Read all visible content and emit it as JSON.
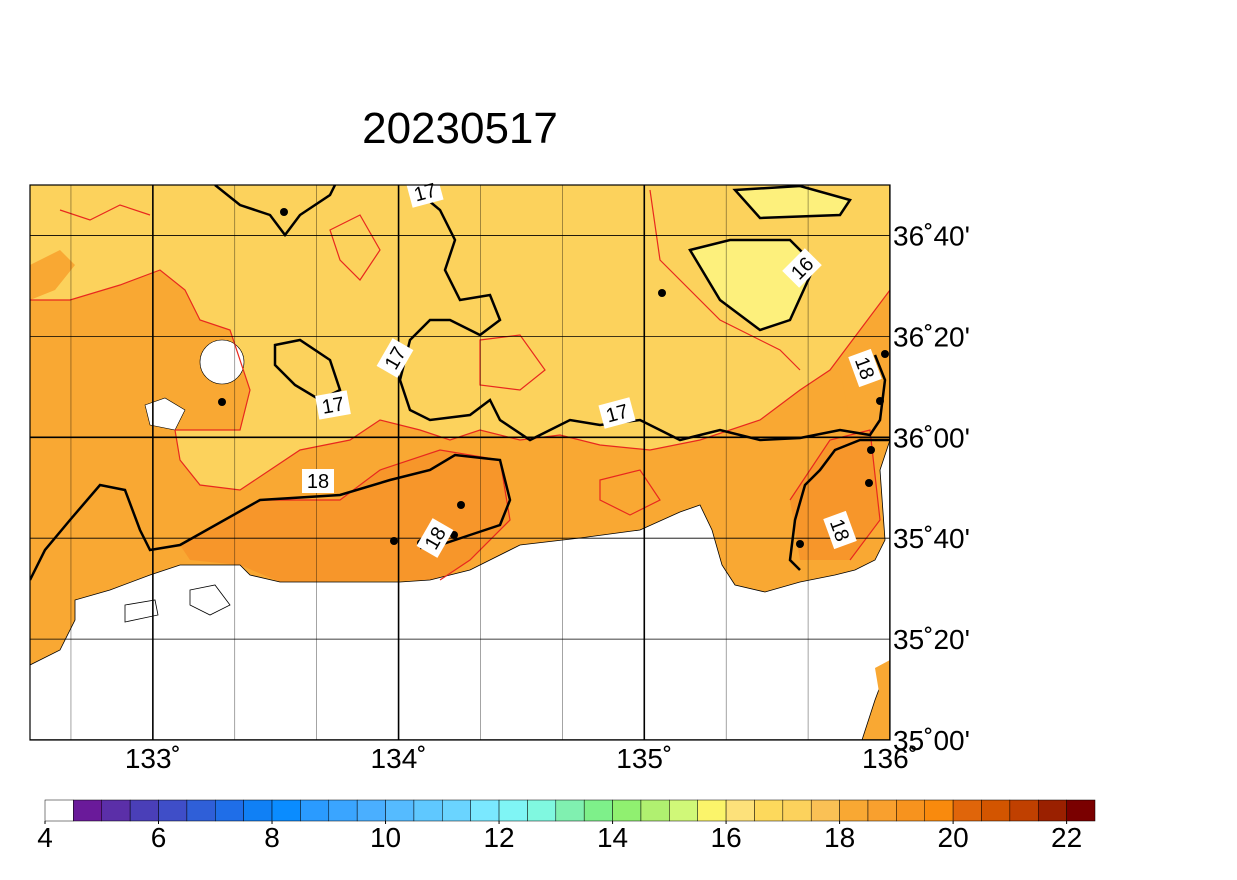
{
  "title": "20230517",
  "map": {
    "lonlim": [
      132.5,
      136
    ],
    "latlim": [
      35,
      36.8333
    ],
    "lon_ticks": [
      {
        "value": 133,
        "label": "133˚"
      },
      {
        "value": 134,
        "label": "134˚"
      },
      {
        "value": 135,
        "label": "135˚"
      },
      {
        "value": 136,
        "label": "136˚"
      }
    ],
    "lat_ticks": [
      {
        "value": 35,
        "label": "35˚00'"
      },
      {
        "value": 35.3333,
        "label": "35˚20'"
      },
      {
        "value": 35.6667,
        "label": "35˚40'"
      },
      {
        "value": 36,
        "label": "36˚00'"
      },
      {
        "value": 36.3333,
        "label": "36˚20'"
      },
      {
        "value": 36.6667,
        "label": "36˚40'"
      }
    ],
    "contour_labels": [
      "17",
      "17",
      "17",
      "17",
      "16",
      "18",
      "18",
      "18",
      "18"
    ]
  },
  "colorbar": {
    "lim": [
      4,
      22.5
    ],
    "levels": [
      4,
      4.5,
      5,
      5.5,
      6,
      6.5,
      7,
      7.5,
      8,
      8.5,
      9,
      9.5,
      10,
      10.5,
      11,
      11.5,
      12,
      12.5,
      13,
      13.5,
      14,
      14.5,
      15,
      15.5,
      16,
      16.5,
      17,
      17.5,
      18,
      18.5,
      19,
      19.5,
      20,
      20.5,
      21,
      21.5,
      22,
      22.5
    ],
    "colors": [
      "#ffffff",
      "#6a1a9a",
      "#5b2fa8",
      "#4a3fb8",
      "#3f4ec8",
      "#2f5fd8",
      "#1f6ee8",
      "#1080f5",
      "#0a8cff",
      "#2a9bff",
      "#3aa5ff",
      "#4aafff",
      "#55bbff",
      "#5fc8ff",
      "#6ad4ff",
      "#7ae8ff",
      "#7ff5f5",
      "#80f8e0",
      "#80f0b0",
      "#7ef08a",
      "#90f070",
      "#b0f070",
      "#d0f878",
      "#fbf46a",
      "#fde17a",
      "#fdd95c",
      "#fcd25c",
      "#fac155",
      "#f9a833",
      "#f9a02e",
      "#f7931e",
      "#f98a0d",
      "#e0650a",
      "#d35500",
      "#c04000",
      "#9a2000",
      "#7a0000"
    ],
    "ticks": [
      4,
      6,
      8,
      10,
      12,
      14,
      16,
      18,
      20,
      22
    ]
  }
}
